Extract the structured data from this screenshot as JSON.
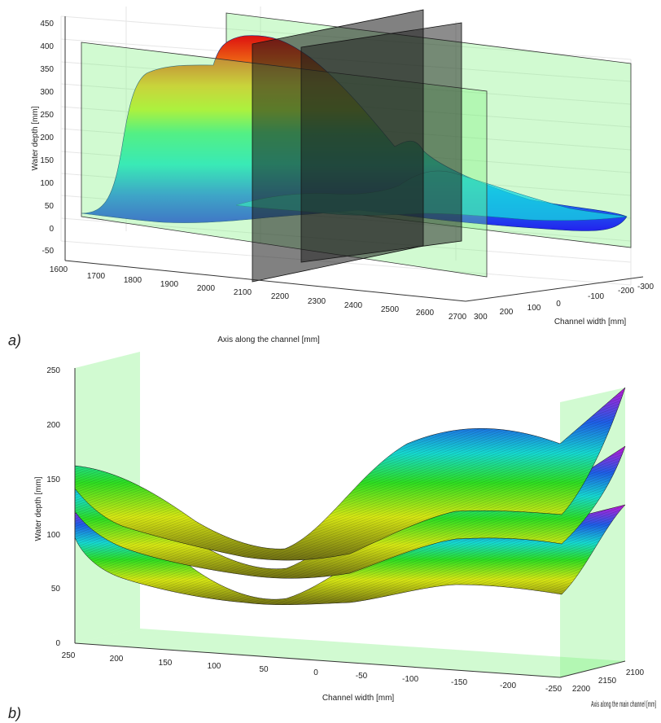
{
  "panels": {
    "a": "a)",
    "b": "b)"
  },
  "chart_data": [
    {
      "type": "surface",
      "panel": "a)",
      "zlabel": "Water depth [mm]",
      "xlabel": "Axis along the channel [mm]",
      "ylabel": "Channel width [mm]",
      "z_ticks": [
        "-50",
        "0",
        "50",
        "100",
        "150",
        "200",
        "250",
        "300",
        "350",
        "400",
        "450"
      ],
      "x_ticks": [
        "1600",
        "1700",
        "1800",
        "1900",
        "2000",
        "2100",
        "2200",
        "2300",
        "2400",
        "2500",
        "2600",
        "2700"
      ],
      "y_ticks": [
        "300",
        "200",
        "100",
        "0",
        "-100",
        "-200",
        "-300"
      ],
      "zlim": [
        -50,
        450
      ],
      "xlim": [
        1600,
        2700
      ],
      "ylim": [
        -300,
        300
      ],
      "peak_depth": 410,
      "colors": {
        "plane_green": "#7cf27c",
        "plane_dark": "#1a1a1a"
      }
    },
    {
      "type": "surface",
      "panel": "b)",
      "zlabel": "Water depth [mm]",
      "xlabel": "Channel width [mm]",
      "ylabel": "Axis along the main channel [mm]",
      "z_ticks": [
        "0",
        "50",
        "100",
        "150",
        "200",
        "250"
      ],
      "x_ticks": [
        "250",
        "200",
        "150",
        "100",
        "50",
        "0",
        "-50",
        "-100",
        "-150",
        "-200",
        "-250"
      ],
      "y_ticks": [
        "2200",
        "2150",
        "2100"
      ],
      "zlim": [
        0,
        250
      ],
      "xlim": [
        -250,
        250
      ],
      "series": [
        {
          "values": [
            160,
            128,
            82,
            152,
            190,
            230
          ]
        },
        {
          "values": [
            140,
            110,
            62,
            118,
            150,
            178
          ]
        },
        {
          "values": [
            118,
            92,
            40,
            80,
            112,
            128
          ]
        }
      ],
      "colors": {
        "plane_green": "#7cf27c"
      }
    }
  ]
}
